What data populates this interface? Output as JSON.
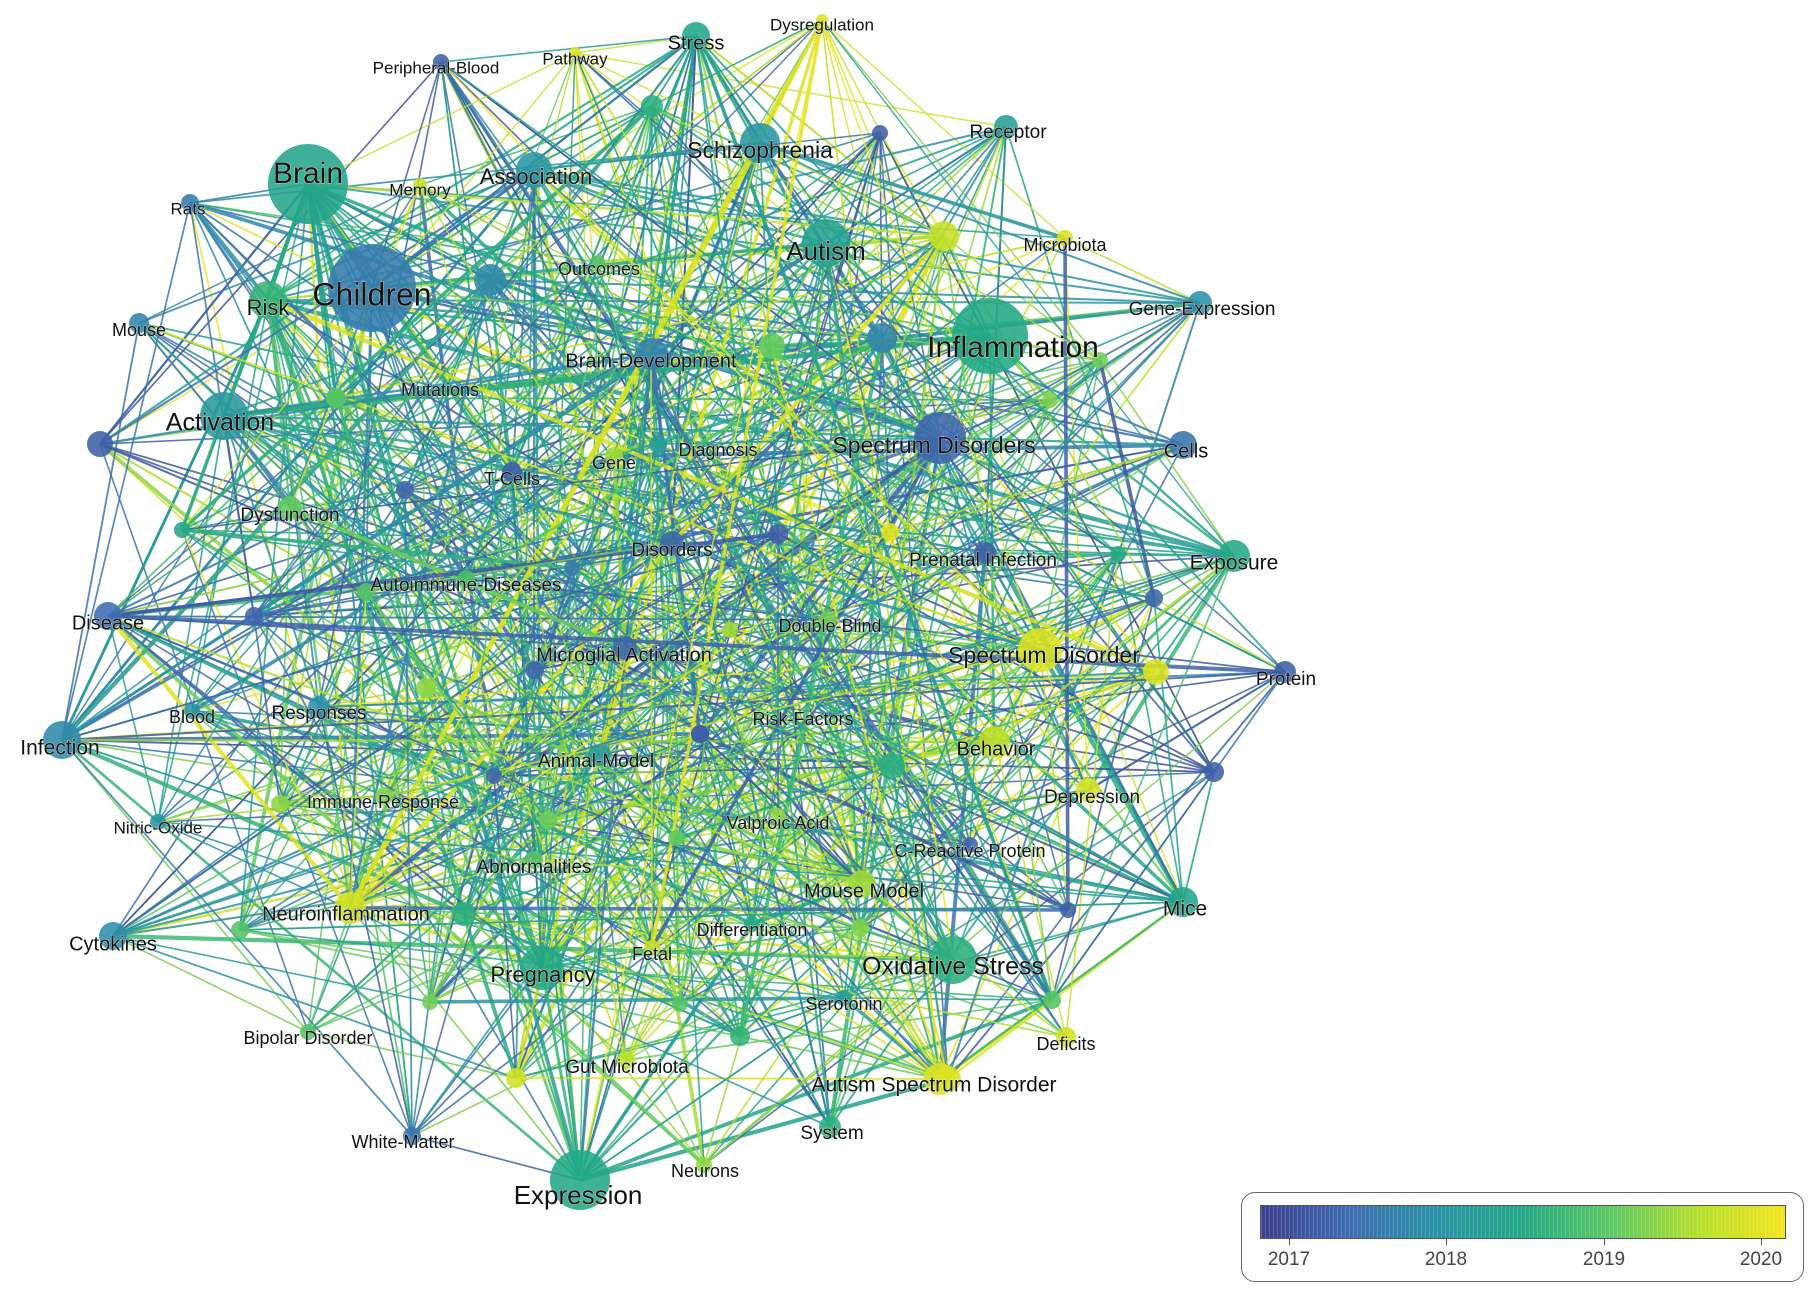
{
  "legend": {
    "ticks": [
      "2017",
      "2018",
      "2019",
      "2020"
    ],
    "colors": [
      "#3b3f8f",
      "#3e6bb0",
      "#2a93a8",
      "#22a884",
      "#5cc863",
      "#b5de2b",
      "#f2e51d"
    ]
  },
  "nodes": [
    {
      "label": "Brain",
      "year": 2018.4
    },
    {
      "label": "Children",
      "year": 2017.6
    },
    {
      "label": "Inflammation",
      "year": 2018.5
    },
    {
      "label": "Expression",
      "year": 2018.5
    },
    {
      "label": "Autism",
      "year": 2018.3
    },
    {
      "label": "Schizophrenia",
      "year": 2018.0
    },
    {
      "label": "Association",
      "year": 2018.0
    },
    {
      "label": "Activation",
      "year": 2018.1
    },
    {
      "label": "Spectrum Disorders",
      "year": 2017.3
    },
    {
      "label": "Spectrum Disorder",
      "year": 2020.0
    },
    {
      "label": "Oxidative Stress",
      "year": 2018.6
    },
    {
      "label": "Risk",
      "year": 2018.7
    },
    {
      "label": "Stress",
      "year": 2018.4
    },
    {
      "label": "Receptor",
      "year": 2018.2
    },
    {
      "label": "Gene-Expression",
      "year": 2017.9
    },
    {
      "label": "Cells",
      "year": 2017.5
    },
    {
      "label": "Exposure",
      "year": 2018.5
    },
    {
      "label": "Protein",
      "year": 2017.2
    },
    {
      "label": "Mice",
      "year": 2018.4
    },
    {
      "label": "Infection",
      "year": 2017.8
    },
    {
      "label": "Cytokines",
      "year": 2017.9
    },
    {
      "label": "Disease",
      "year": 2017.4
    },
    {
      "label": "Mouse",
      "year": 2017.7
    },
    {
      "label": "Rats",
      "year": 2017.6
    },
    {
      "label": "Memory",
      "year": 2019.8
    },
    {
      "label": "Peripheral-Blood",
      "year": 2017.2
    },
    {
      "label": "Pathway",
      "year": 2020.0
    },
    {
      "label": "Dysregulation",
      "year": 2020.0
    },
    {
      "label": "Microbiota",
      "year": 2020.0
    },
    {
      "label": "Outcomes",
      "year": 2019.0
    },
    {
      "label": "Brain-Development",
      "year": 2017.7
    },
    {
      "label": "Mutations",
      "year": 2019.0
    },
    {
      "label": "Diagnosis",
      "year": 2018.2
    },
    {
      "label": "Gene",
      "year": 2019.5
    },
    {
      "label": "T-Cells",
      "year": 2017.2
    },
    {
      "label": "Dysfunction",
      "year": 2019.1
    },
    {
      "label": "Disorders",
      "year": 2017.3
    },
    {
      "label": "Prenatal Infection",
      "year": 2017.2
    },
    {
      "label": "Autoimmune-Diseases",
      "year": 2018.9
    },
    {
      "label": "Double-Blind",
      "year": 2019.2
    },
    {
      "label": "Microglial Activation",
      "year": 2017.3
    },
    {
      "label": "Responses",
      "year": 2017.9
    },
    {
      "label": "Blood",
      "year": 2018.0
    },
    {
      "label": "Risk-Factors",
      "year": 2017.2
    },
    {
      "label": "Behavior",
      "year": 2019.7
    },
    {
      "label": "Animal-Model",
      "year": 2018.1
    },
    {
      "label": "Depression",
      "year": 2019.9
    },
    {
      "label": "Immune-Response",
      "year": 2019.3
    },
    {
      "label": "Nitric-Oxide",
      "year": 2018.0
    },
    {
      "label": "Valproic Acid",
      "year": 2019.4
    },
    {
      "label": "C-Reactive Protein",
      "year": 2017.3
    },
    {
      "label": "Abnormalities",
      "year": 2019.0
    },
    {
      "label": "Mouse Model",
      "year": 2019.5
    },
    {
      "label": "Neuroinflammation",
      "year": 2019.9
    },
    {
      "label": "Differentiation",
      "year": 2018.5
    },
    {
      "label": "Fetal",
      "year": 2019.8
    },
    {
      "label": "Pregnancy",
      "year": 2018.5
    },
    {
      "label": "Serotonin",
      "year": 2018.2
    },
    {
      "label": "Deficits",
      "year": 2019.9
    },
    {
      "label": "Bipolar Disorder",
      "year": 2019.0
    },
    {
      "label": "Gut Microbiota",
      "year": 2019.7
    },
    {
      "label": "Autism Spectrum Disorder",
      "year": 2020.0
    },
    {
      "label": "System",
      "year": 2018.6
    },
    {
      "label": "White-Matter",
      "year": 2017.5
    },
    {
      "label": "Neurons",
      "year": 2019.4
    }
  ]
}
